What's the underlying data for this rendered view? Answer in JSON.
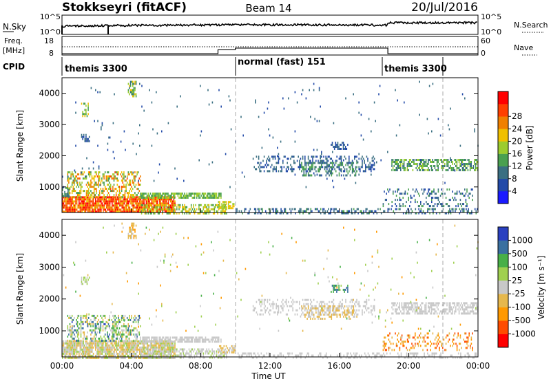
{
  "header": {
    "station": "Stokkseyri (fitACF)",
    "beam": "Beam 14",
    "date": "20/Jul/2016"
  },
  "noise_panel": {
    "left_label": "N.Sky",
    "left_ticks": [
      "10^5",
      "10^0"
    ],
    "right_ticks": [
      "10^5",
      "10^0"
    ],
    "right_label": "N.Search",
    "series": [
      {
        "name": "N.Sky",
        "style": "solid"
      },
      {
        "name": "N.Search",
        "style": "dotted"
      }
    ]
  },
  "freq_panel": {
    "left_label_1": "Freq.",
    "left_label_2": "[MHz]",
    "left_ticks": [
      "18",
      "8"
    ],
    "right_ticks": [
      "60",
      "0"
    ],
    "right_label": "Nave",
    "series": [
      {
        "name": "Freq.",
        "style": "solid"
      },
      {
        "name": "Nave",
        "style": "dotted"
      }
    ]
  },
  "cpid": {
    "label": "CPID",
    "segments": [
      {
        "name": "themis 3300",
        "start_h": 0,
        "end_h": 10
      },
      {
        "name": "normal (fast) 151",
        "start_h": 10,
        "end_h": 18.8
      },
      {
        "name": "themis 3300",
        "start_h": 18.8,
        "end_h": 24
      }
    ]
  },
  "time_axis": {
    "label": "Time UT",
    "ticks": [
      "00:00",
      "04:00",
      "08:00",
      "12:00",
      "16:00",
      "20:00",
      "00:00"
    ],
    "range_h": [
      0,
      24
    ]
  },
  "range_axis": {
    "label": "Slant Range [km]",
    "ticks": [
      "1000",
      "2000",
      "3000",
      "4000"
    ],
    "range_km": [
      180,
      4500
    ]
  },
  "colors": {
    "power": [
      "#1a1aff",
      "#224aa8",
      "#3a6f82",
      "#4aa050",
      "#9ccc2e",
      "#f0c000",
      "#f08000",
      "#ff4000",
      "#ff0000"
    ],
    "velocity": [
      "#ff0000",
      "#ff4d00",
      "#ff9900",
      "#e6b84d",
      "#c8c8c8",
      "#a0d050",
      "#48b048",
      "#3a70a0",
      "#2a40c0"
    ]
  },
  "power_bar": {
    "label": "Power [dB]",
    "ticks": [
      "4",
      "8",
      "12",
      "16",
      "20",
      "24",
      "28"
    ]
  },
  "velocity_bar": {
    "label": "Velocity [m s⁻¹]",
    "ticks": [
      "-1000",
      "-500",
      "-100",
      "-25",
      "25",
      "100",
      "500",
      "1000"
    ]
  },
  "chart_data": {
    "type": "heatmap",
    "title": "Stokkseyri (fitACF)",
    "subtitle": "Beam 14",
    "date": "20/Jul/2016",
    "xlabel": "Time UT",
    "xlim_hours": [
      0,
      24
    ],
    "ylabel": "Slant Range [km]",
    "ylim_km": [
      180,
      4500
    ],
    "panels": [
      {
        "name": "Power",
        "units": "dB",
        "crange": [
          0,
          30
        ],
        "scatter_regions": [
          {
            "t": [
              0,
              6.5
            ],
            "r": [
              180,
              700
            ],
            "value": [
              18,
              30
            ],
            "density": 0.85
          },
          {
            "t": [
              0.3,
              4.5
            ],
            "r": [
              700,
              1500
            ],
            "value": [
              10,
              24
            ],
            "density": 0.45
          },
          {
            "t": [
              0,
              0.4
            ],
            "r": [
              700,
              1000
            ],
            "value": [
              6,
              14
            ],
            "density": 0.6
          },
          {
            "t": [
              4.5,
              9.2
            ],
            "r": [
              650,
              820
            ],
            "value": [
              10,
              16
            ],
            "density": 0.75
          },
          {
            "t": [
              4.5,
              9.5
            ],
            "r": [
              180,
              450
            ],
            "value": [
              10,
              20
            ],
            "density": 0.5
          },
          {
            "t": [
              9,
              10
            ],
            "r": [
              300,
              550
            ],
            "value": [
              14,
              20
            ],
            "density": 0.6
          },
          {
            "t": [
              10,
              24
            ],
            "r": [
              180,
              320
            ],
            "value": [
              4,
              12
            ],
            "density": 0.35
          },
          {
            "t": [
              11,
              18
            ],
            "r": [
              1500,
              2000
            ],
            "value": [
              4,
              10
            ],
            "density": 0.3
          },
          {
            "t": [
              13.8,
              17
            ],
            "r": [
              1400,
              1800
            ],
            "value": [
              6,
              13
            ],
            "density": 0.35
          },
          {
            "t": [
              19,
              24
            ],
            "r": [
              1550,
              1900
            ],
            "value": [
              8,
              16
            ],
            "density": 0.55
          },
          {
            "t": [
              15.5,
              16.5
            ],
            "r": [
              2200,
              2450
            ],
            "value": [
              4,
              8
            ],
            "density": 0.55
          },
          {
            "t": [
              18.5,
              23.7
            ],
            "r": [
              400,
              950
            ],
            "value": [
              4,
              12
            ],
            "density": 0.25
          },
          {
            "t": [
              3.8,
              4.3
            ],
            "r": [
              3900,
              4400
            ],
            "value": [
              8,
              20
            ],
            "density": 0.5
          },
          {
            "t": [
              1.1,
              1.5
            ],
            "r": [
              3300,
              3700
            ],
            "value": [
              10,
              20
            ],
            "density": 0.4
          },
          {
            "t": [
              1.1,
              1.6
            ],
            "r": [
              2500,
              2700
            ],
            "value": [
              4,
              10
            ],
            "density": 0.5
          },
          {
            "t": [
              0,
              24
            ],
            "r": [
              1000,
              4400
            ],
            "value": [
              4,
              10
            ],
            "density": 0.01
          }
        ]
      },
      {
        "name": "Velocity",
        "units": "m s-1",
        "crange": [
          -1000,
          1000
        ],
        "scatter_regions": [
          {
            "t": [
              0,
              6.5
            ],
            "r": [
              180,
              700
            ],
            "value": [
              -300,
              200
            ],
            "density": 0.85
          },
          {
            "t": [
              0.3,
              4.5
            ],
            "r": [
              700,
              1500
            ],
            "value": [
              -300,
              800
            ],
            "density": 0.45
          },
          {
            "t": [
              4.5,
              9.2
            ],
            "r": [
              650,
              820
            ],
            "value": [
              -20,
              20
            ],
            "density": 0.75
          },
          {
            "t": [
              4.5,
              9.5
            ],
            "r": [
              180,
              450
            ],
            "value": [
              20,
              150
            ],
            "density": 0.5
          },
          {
            "t": [
              9,
              10
            ],
            "r": [
              300,
              550
            ],
            "value": [
              -200,
              -30
            ],
            "density": 0.6
          },
          {
            "t": [
              10,
              24
            ],
            "r": [
              180,
              320
            ],
            "value": [
              -50,
              50
            ],
            "density": 0.3
          },
          {
            "t": [
              11,
              18
            ],
            "r": [
              1500,
              2000
            ],
            "value": [
              -20,
              20
            ],
            "density": 0.3
          },
          {
            "t": [
              13.8,
              17
            ],
            "r": [
              1400,
              1800
            ],
            "value": [
              -300,
              -30
            ],
            "density": 0.35
          },
          {
            "t": [
              19,
              24
            ],
            "r": [
              1550,
              1900
            ],
            "value": [
              -20,
              20
            ],
            "density": 0.55
          },
          {
            "t": [
              15.5,
              16.5
            ],
            "r": [
              2200,
              2450
            ],
            "value": [
              300,
              800
            ],
            "density": 0.55
          },
          {
            "t": [
              18.5,
              23.7
            ],
            "r": [
              400,
              950
            ],
            "value": [
              -700,
              -100
            ],
            "density": 0.25
          },
          {
            "t": [
              3.8,
              4.3
            ],
            "r": [
              3900,
              4400
            ],
            "value": [
              -500,
              -50
            ],
            "density": 0.5
          },
          {
            "t": [
              1.1,
              1.6
            ],
            "r": [
              2500,
              2700
            ],
            "value": [
              30,
              300
            ],
            "density": 0.5
          },
          {
            "t": [
              0,
              24
            ],
            "r": [
              1000,
              4400
            ],
            "value": [
              -500,
              500
            ],
            "density": 0.01
          }
        ]
      }
    ]
  }
}
